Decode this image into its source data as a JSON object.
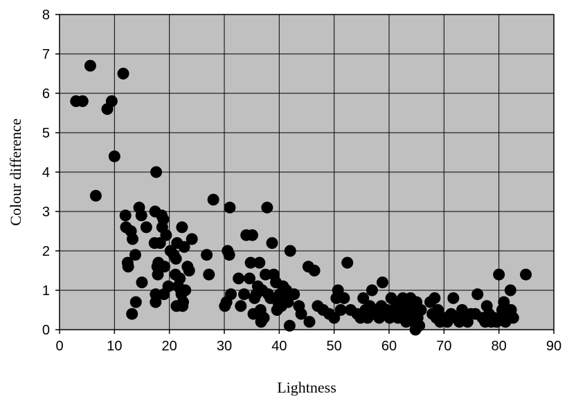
{
  "chart_data": {
    "type": "scatter",
    "xlabel": "Lightness",
    "ylabel": "Colour difference",
    "xlim": [
      0,
      90
    ],
    "ylim": [
      0,
      8
    ],
    "xticks": [
      0,
      10,
      20,
      30,
      40,
      50,
      60,
      70,
      80,
      90
    ],
    "yticks": [
      0,
      1,
      2,
      3,
      4,
      5,
      6,
      7,
      8
    ],
    "grid": true,
    "plot_background": "#c0c0c0",
    "marker_color": "#000000",
    "points": [
      [
        3.0,
        5.8
      ],
      [
        4.2,
        5.8
      ],
      [
        5.6,
        6.7
      ],
      [
        6.6,
        3.4
      ],
      [
        8.7,
        5.6
      ],
      [
        9.5,
        5.8
      ],
      [
        10.0,
        4.4
      ],
      [
        11.6,
        6.5
      ],
      [
        12.0,
        2.9
      ],
      [
        12.1,
        2.6
      ],
      [
        12.4,
        1.7
      ],
      [
        12.5,
        1.6
      ],
      [
        13.0,
        2.5
      ],
      [
        13.3,
        2.3
      ],
      [
        13.2,
        0.4
      ],
      [
        13.8,
        1.9
      ],
      [
        13.9,
        0.7
      ],
      [
        14.5,
        3.1
      ],
      [
        14.9,
        2.9
      ],
      [
        15.0,
        1.2
      ],
      [
        15.8,
        2.6
      ],
      [
        17.3,
        2.2
      ],
      [
        17.4,
        3.0
      ],
      [
        17.5,
        0.7
      ],
      [
        17.5,
        0.9
      ],
      [
        17.6,
        4.0
      ],
      [
        17.8,
        1.6
      ],
      [
        17.9,
        1.4
      ],
      [
        18.0,
        1.7
      ],
      [
        18.3,
        2.2
      ],
      [
        18.6,
        2.9
      ],
      [
        18.7,
        2.6
      ],
      [
        18.9,
        2.8
      ],
      [
        19.0,
        0.9
      ],
      [
        19.1,
        1.6
      ],
      [
        19.4,
        2.4
      ],
      [
        19.8,
        1.1
      ],
      [
        20.2,
        2.0
      ],
      [
        20.8,
        1.9
      ],
      [
        21.1,
        1.4
      ],
      [
        21.2,
        1.8
      ],
      [
        21.3,
        0.6
      ],
      [
        21.4,
        2.2
      ],
      [
        21.6,
        1.1
      ],
      [
        21.9,
        1.3
      ],
      [
        22.1,
        1.0
      ],
      [
        22.2,
        0.9
      ],
      [
        22.3,
        2.6
      ],
      [
        22.4,
        0.6
      ],
      [
        22.5,
        0.7
      ],
      [
        22.7,
        2.1
      ],
      [
        22.9,
        1.0
      ],
      [
        23.3,
        1.6
      ],
      [
        23.6,
        1.5
      ],
      [
        24.1,
        2.3
      ],
      [
        26.8,
        1.9
      ],
      [
        27.2,
        1.4
      ],
      [
        28.0,
        3.3
      ],
      [
        30.1,
        0.6
      ],
      [
        30.4,
        0.7
      ],
      [
        30.6,
        2.0
      ],
      [
        30.9,
        1.9
      ],
      [
        31.0,
        3.1
      ],
      [
        31.2,
        0.9
      ],
      [
        32.6,
        1.3
      ],
      [
        33.0,
        0.6
      ],
      [
        33.6,
        0.9
      ],
      [
        34.0,
        2.4
      ],
      [
        34.6,
        1.3
      ],
      [
        34.8,
        1.7
      ],
      [
        35.1,
        2.4
      ],
      [
        35.3,
        0.4
      ],
      [
        35.5,
        0.8
      ],
      [
        35.8,
        0.9
      ],
      [
        36.1,
        1.1
      ],
      [
        36.4,
        1.7
      ],
      [
        36.6,
        0.5
      ],
      [
        36.7,
        0.2
      ],
      [
        36.9,
        1.0
      ],
      [
        37.2,
        0.3
      ],
      [
        37.5,
        1.4
      ],
      [
        37.8,
        3.1
      ],
      [
        38.0,
        0.9
      ],
      [
        38.4,
        0.8
      ],
      [
        38.7,
        2.2
      ],
      [
        39.0,
        1.4
      ],
      [
        39.4,
        1.2
      ],
      [
        39.6,
        0.5
      ],
      [
        39.8,
        0.7
      ],
      [
        40.1,
        0.9
      ],
      [
        40.4,
        0.6
      ],
      [
        40.7,
        1.1
      ],
      [
        41.0,
        0.8
      ],
      [
        41.3,
        1.0
      ],
      [
        41.6,
        0.7
      ],
      [
        41.9,
        0.1
      ],
      [
        42.0,
        2.0
      ],
      [
        42.7,
        0.9
      ],
      [
        43.6,
        0.6
      ],
      [
        44.0,
        0.4
      ],
      [
        45.3,
        1.6
      ],
      [
        45.5,
        0.2
      ],
      [
        46.4,
        1.5
      ],
      [
        47.0,
        0.6
      ],
      [
        48.0,
        0.5
      ],
      [
        49.1,
        0.4
      ],
      [
        50.0,
        0.3
      ],
      [
        50.4,
        0.8
      ],
      [
        50.7,
        1.0
      ],
      [
        51.2,
        0.5
      ],
      [
        51.8,
        0.8
      ],
      [
        52.4,
        1.7
      ],
      [
        53.0,
        0.5
      ],
      [
        54.2,
        0.4
      ],
      [
        54.8,
        0.3
      ],
      [
        55.3,
        0.8
      ],
      [
        55.7,
        0.5
      ],
      [
        56.1,
        0.3
      ],
      [
        56.5,
        0.6
      ],
      [
        56.9,
        1.0
      ],
      [
        57.3,
        0.4
      ],
      [
        57.8,
        0.5
      ],
      [
        58.2,
        0.3
      ],
      [
        58.6,
        0.6
      ],
      [
        58.8,
        1.2
      ],
      [
        59.2,
        0.4
      ],
      [
        59.6,
        0.5
      ],
      [
        60.1,
        0.3
      ],
      [
        60.4,
        0.8
      ],
      [
        60.8,
        0.5
      ],
      [
        61.2,
        0.7
      ],
      [
        61.6,
        0.3
      ],
      [
        61.9,
        0.6
      ],
      [
        62.2,
        0.4
      ],
      [
        62.5,
        0.8
      ],
      [
        62.8,
        0.6
      ],
      [
        63.1,
        0.2
      ],
      [
        63.3,
        0.5
      ],
      [
        63.5,
        0.7
      ],
      [
        63.7,
        0.3
      ],
      [
        63.9,
        0.8
      ],
      [
        64.1,
        0.5
      ],
      [
        64.3,
        0.6
      ],
      [
        64.5,
        0.2
      ],
      [
        64.7,
        0.4
      ],
      [
        64.8,
        0.0
      ],
      [
        65.0,
        0.7
      ],
      [
        65.2,
        0.3
      ],
      [
        65.5,
        0.1
      ],
      [
        65.8,
        0.5
      ],
      [
        67.5,
        0.7
      ],
      [
        67.9,
        0.4
      ],
      [
        68.3,
        0.8
      ],
      [
        68.6,
        0.3
      ],
      [
        68.9,
        0.5
      ],
      [
        69.3,
        0.2
      ],
      [
        70.0,
        0.3
      ],
      [
        70.6,
        0.2
      ],
      [
        71.3,
        0.4
      ],
      [
        71.7,
        0.8
      ],
      [
        72.2,
        0.3
      ],
      [
        72.8,
        0.2
      ],
      [
        73.3,
        0.5
      ],
      [
        73.8,
        0.3
      ],
      [
        74.3,
        0.2
      ],
      [
        74.9,
        0.4
      ],
      [
        75.7,
        0.4
      ],
      [
        76.1,
        0.9
      ],
      [
        77.0,
        0.3
      ],
      [
        77.5,
        0.2
      ],
      [
        77.8,
        0.6
      ],
      [
        78.2,
        0.4
      ],
      [
        78.6,
        0.2
      ],
      [
        79.1,
        0.3
      ],
      [
        79.6,
        0.2
      ],
      [
        80.0,
        1.4
      ],
      [
        80.3,
        0.3
      ],
      [
        80.6,
        0.5
      ],
      [
        80.9,
        0.7
      ],
      [
        81.2,
        0.2
      ],
      [
        81.5,
        0.4
      ],
      [
        81.8,
        0.3
      ],
      [
        82.1,
        1.0
      ],
      [
        82.2,
        0.5
      ],
      [
        82.6,
        0.3
      ],
      [
        84.9,
        1.4
      ]
    ]
  }
}
